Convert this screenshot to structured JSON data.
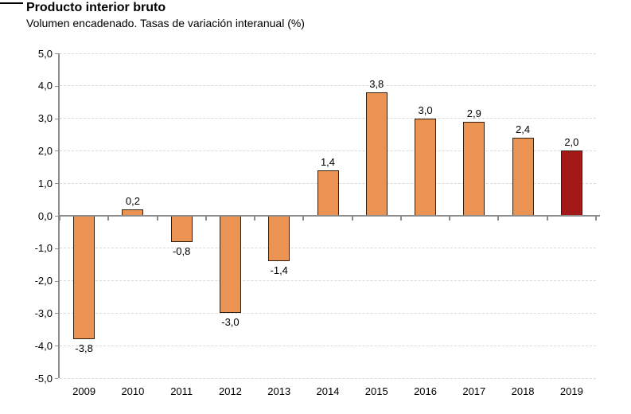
{
  "header": {
    "title": "Producto interior bruto",
    "subtitle": "Volumen encadenado. Tasas de variación interanual (%)"
  },
  "chart_data": {
    "type": "bar",
    "title": "Producto interior bruto",
    "subtitle": "Volumen encadenado. Tasas de variación interanual (%)",
    "categories": [
      "2009",
      "2010",
      "2011",
      "2012",
      "2013",
      "2014",
      "2015",
      "2016",
      "2017",
      "2018",
      "2019"
    ],
    "values": [
      -3.8,
      0.2,
      -0.8,
      -3.0,
      -1.4,
      1.4,
      3.8,
      3.0,
      2.9,
      2.4,
      2.0
    ],
    "value_labels": [
      "-3,8",
      "0,2",
      "-0,8",
      "-3,0",
      "-1,4",
      "1,4",
      "3,8",
      "3,0",
      "2,9",
      "2,4",
      "2,0"
    ],
    "xlabel": "",
    "ylabel": "",
    "ylim": [
      -5,
      5
    ],
    "yticks": [
      5,
      4,
      3,
      2,
      1,
      0,
      -1,
      -2,
      -3,
      -4,
      -5
    ],
    "ytick_labels": [
      "5,0",
      "4,0",
      "3,0",
      "2,0",
      "1,0",
      "0,0",
      "-1,0",
      "-2,0",
      "-3,0",
      "-4,0",
      "-5,0"
    ],
    "grid": "horizontal-dashed",
    "legend": "none",
    "decimal_separator": ",",
    "colors": {
      "bar_fill": "#EA9352",
      "bar_border": "#31200E",
      "highlight_fill": "#A31818",
      "highlight_index": 10,
      "axis_line": "#8C8C8C",
      "gridline": "#DADADA",
      "text": "#000000"
    }
  }
}
